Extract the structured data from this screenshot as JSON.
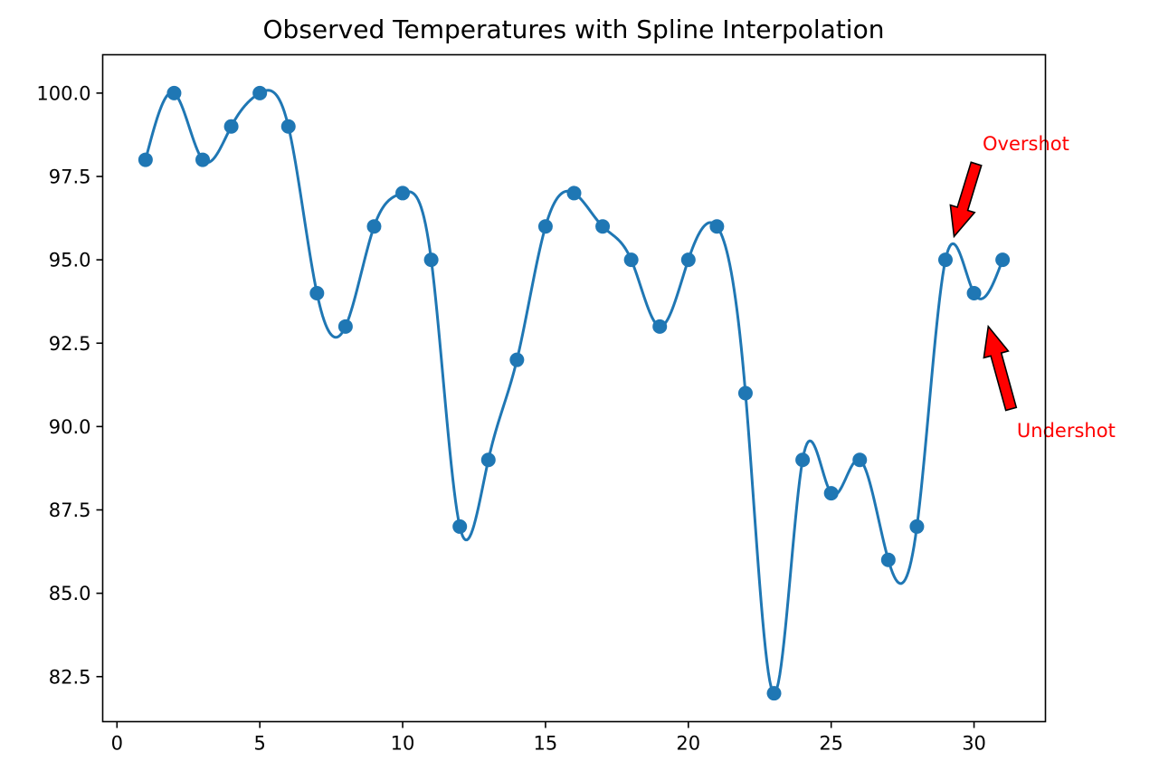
{
  "chart_data": {
    "type": "line",
    "title": "Observed Temperatures with Spline Interpolation",
    "xlabel": "",
    "ylabel": "",
    "xlim": [
      -0.5,
      32.5
    ],
    "ylim": [
      81.15,
      101.15
    ],
    "x_ticks": [
      0,
      5,
      10,
      15,
      20,
      25,
      30
    ],
    "y_ticks": [
      82.5,
      85.0,
      87.5,
      90.0,
      92.5,
      95.0,
      97.5,
      100.0
    ],
    "x_tick_labels": [
      "0",
      "5",
      "10",
      "15",
      "20",
      "25",
      "30"
    ],
    "y_tick_labels": [
      "82.5",
      "85.0",
      "87.5",
      "90.0",
      "92.5",
      "95.0",
      "97.5",
      "100.0"
    ],
    "grid": false,
    "legend": "none",
    "series": [
      {
        "x": [
          1,
          2,
          3,
          4,
          5,
          6,
          7,
          8,
          9,
          10,
          11,
          12,
          13,
          14,
          15,
          16,
          17,
          18,
          19,
          20,
          21,
          22,
          23,
          24,
          25,
          26,
          27,
          28,
          29,
          30,
          31
        ],
        "values": [
          98,
          100,
          98,
          99,
          100,
          99,
          94,
          93,
          96,
          97,
          95,
          87,
          89,
          92,
          96,
          97,
          96,
          95,
          93,
          95,
          96,
          91,
          82,
          89,
          88,
          89,
          86,
          87,
          95,
          94,
          95
        ],
        "color": "#1f77b4",
        "style": "spline line with circle markers"
      }
    ],
    "annotations": [
      {
        "text": "Overshot",
        "point": [
          29.3,
          95.7
        ],
        "text_pos": [
          30.3,
          98.5
        ],
        "color": "#ff0000",
        "arrow_face": "#ff0000",
        "arrow_edge": "#000000"
      },
      {
        "text": "Undershot",
        "point": [
          30.5,
          93.0
        ],
        "text_pos": [
          31.5,
          89.9
        ],
        "color": "#ff0000",
        "arrow_face": "#ff0000",
        "arrow_edge": "#000000"
      }
    ]
  }
}
